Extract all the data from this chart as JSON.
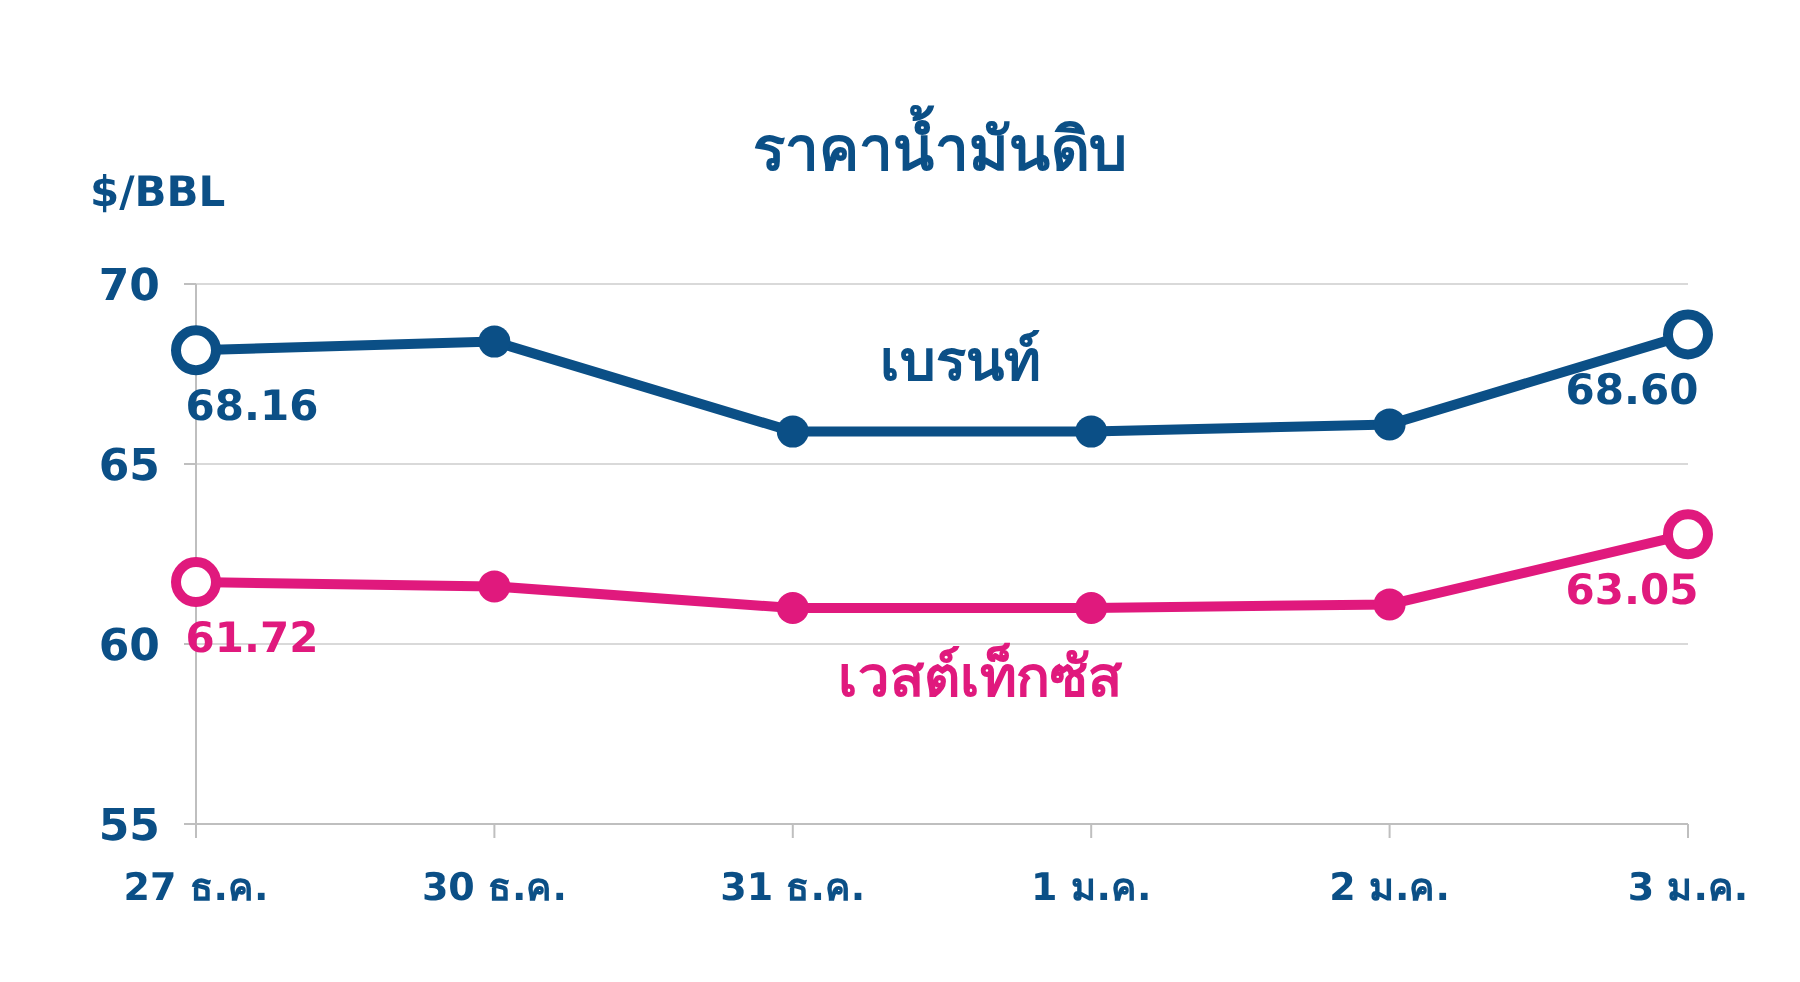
{
  "chart_data": {
    "type": "line",
    "title": "ราคาน้ำมันดิบ",
    "ylabel": "$/BBL",
    "categories": [
      "27 ธ.ค.",
      "30 ธ.ค.",
      "31 ธ.ค.",
      "1 ม.ค.",
      "2 ม.ค.",
      "3 ม.ค."
    ],
    "series": [
      {
        "name": "เบรนท์",
        "color": "#0b4f86",
        "values": [
          68.16,
          68.4,
          65.9,
          65.9,
          66.1,
          68.6
        ],
        "value_labels": [
          "68.16",
          null,
          null,
          null,
          null,
          "68.60"
        ]
      },
      {
        "name": "เวสต์เท็กซัส",
        "color": "#e0197d",
        "values": [
          61.72,
          61.6,
          61.0,
          61.0,
          61.1,
          63.05
        ],
        "value_labels": [
          "61.72",
          null,
          null,
          null,
          null,
          "63.05"
        ]
      }
    ],
    "ylim": [
      55,
      70
    ],
    "yticks": [
      55,
      60,
      65,
      70
    ],
    "grid": "y",
    "marker": "circle",
    "line_style": "solid"
  }
}
